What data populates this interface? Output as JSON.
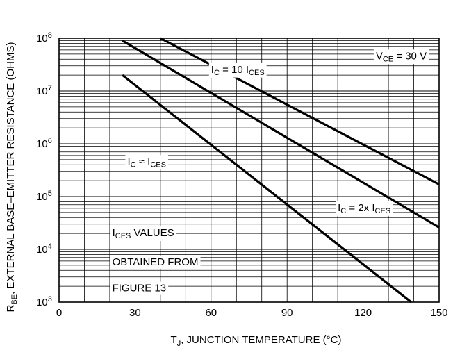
{
  "chart_data": {
    "type": "line",
    "xlabel_main": "T",
    "xlabel_sub": "J",
    "xlabel_rest": ", JUNCTION TEMPERATURE (°C)",
    "ylabel_main": "R",
    "ylabel_sub": "BE",
    "ylabel_rest": ", EXTERNAL BASE–EMITTER RESISTANCE (OHMS)",
    "xlim": [
      0,
      150
    ],
    "ylim": [
      1000,
      100000000
    ],
    "y_scale": "log",
    "grid": true,
    "x_ticks": [
      0,
      30,
      60,
      90,
      120,
      150
    ],
    "x_tick_labels": [
      "0",
      "30",
      "60",
      "90",
      "120",
      "150"
    ],
    "y_ticks": [
      1000,
      10000,
      100000,
      1000000,
      10000000,
      100000000
    ],
    "y_tick_bases": [
      "10",
      "10",
      "10",
      "10",
      "10",
      "10"
    ],
    "y_tick_exps": [
      "3",
      "4",
      "5",
      "6",
      "7",
      "8"
    ],
    "series": [
      {
        "points": [
          [
            40,
            100000000
          ],
          [
            150,
            170000
          ]
        ]
      },
      {
        "points": [
          [
            25,
            90000000
          ],
          [
            150,
            26000
          ]
        ]
      },
      {
        "points": [
          [
            25,
            20000000
          ],
          [
            139,
            1000
          ]
        ]
      }
    ],
    "annotations": [
      {
        "id": "ic-10ices",
        "x": 60,
        "y": 25000000,
        "parts": [
          [
            "I",
            ""
          ],
          [
            "C",
            "sub"
          ],
          [
            " = 10 I",
            ""
          ],
          [
            "CES",
            "sub"
          ]
        ]
      },
      {
        "id": "vce-30v",
        "x": 125,
        "y": 45000000,
        "parts": [
          [
            "V",
            ""
          ],
          [
            "CE",
            "sub"
          ],
          [
            " = 30 V",
            ""
          ]
        ]
      },
      {
        "id": "ic-approx-ices",
        "x": 27,
        "y": 450000,
        "parts": [
          [
            "I",
            ""
          ],
          [
            "C",
            "sub"
          ],
          [
            " ≈ I",
            ""
          ],
          [
            "CES",
            "sub"
          ]
        ]
      },
      {
        "id": "ic-2x-ices",
        "x": 110,
        "y": 60000,
        "parts": [
          [
            "I",
            ""
          ],
          [
            "C",
            "sub"
          ],
          [
            " = 2x I",
            ""
          ],
          [
            "CES",
            "sub"
          ]
        ]
      },
      {
        "id": "ices-values-1",
        "x": 21,
        "y": 20000,
        "parts": [
          [
            "I",
            ""
          ],
          [
            "CES",
            "sub"
          ],
          [
            " VALUES",
            ""
          ]
        ]
      },
      {
        "id": "ices-values-2",
        "x": 21,
        "y": 5600,
        "parts": [
          [
            "OBTAINED FROM",
            ""
          ]
        ]
      },
      {
        "id": "ices-values-3",
        "x": 21,
        "y": 1800,
        "parts": [
          [
            "FIGURE 13",
            ""
          ]
        ]
      }
    ]
  }
}
